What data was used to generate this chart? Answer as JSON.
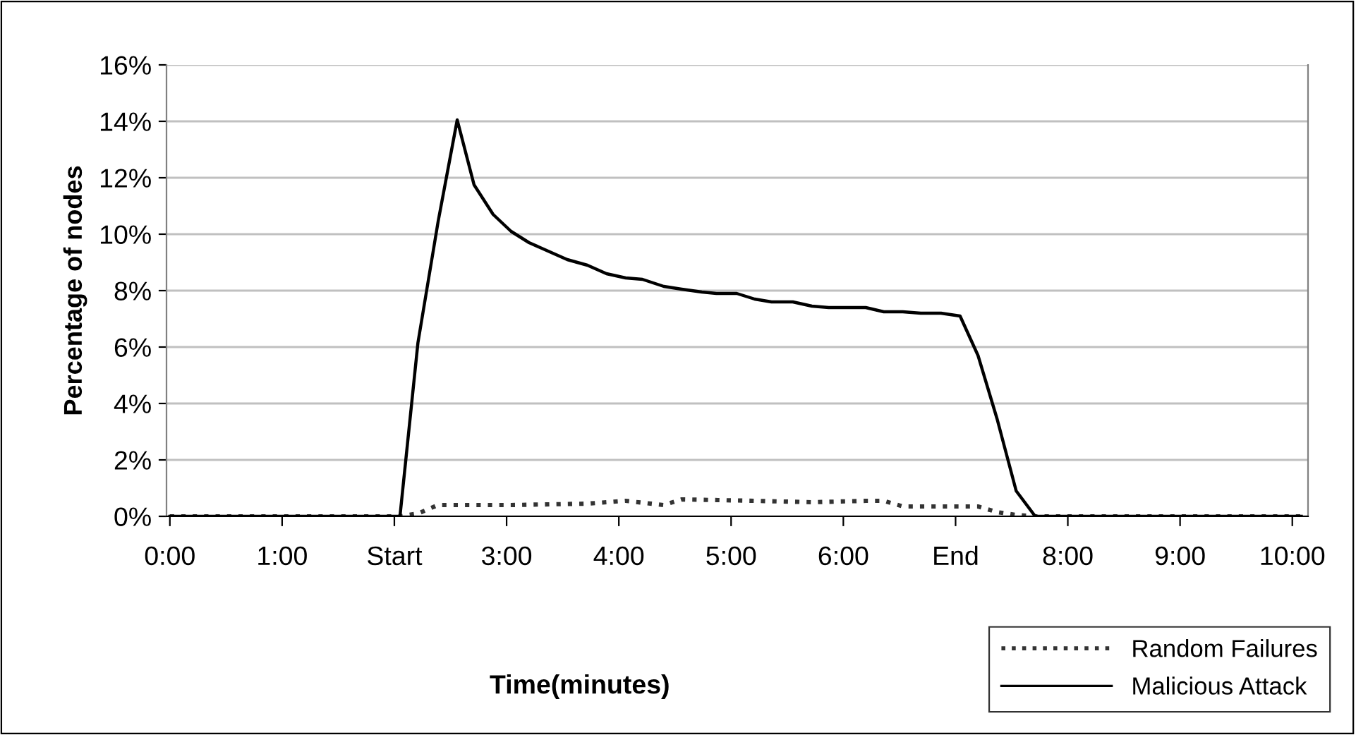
{
  "chart_data": {
    "type": "line",
    "xlabel": "Time(minutes)",
    "ylabel": "Percentage of nodes",
    "xlim": [
      -0.03,
      10.14
    ],
    "xticks": [
      {
        "value": 0,
        "label": "0:00"
      },
      {
        "value": 1,
        "label": "1:00"
      },
      {
        "value": 2,
        "label": "Start"
      },
      {
        "value": 3,
        "label": "3:00"
      },
      {
        "value": 4,
        "label": "4:00"
      },
      {
        "value": 5,
        "label": "5:00"
      },
      {
        "value": 6,
        "label": "6:00"
      },
      {
        "value": 7,
        "label": "End"
      },
      {
        "value": 8,
        "label": "8:00"
      },
      {
        "value": 9,
        "label": "9:00"
      },
      {
        "value": 10,
        "label": "10:00"
      }
    ],
    "ylim": [
      0,
      16
    ],
    "yticks": [
      {
        "value": 0,
        "label": "0%"
      },
      {
        "value": 2,
        "label": "2%"
      },
      {
        "value": 4,
        "label": "4%"
      },
      {
        "value": 6,
        "label": "6%"
      },
      {
        "value": 8,
        "label": "8%"
      },
      {
        "value": 10,
        "label": "10%"
      },
      {
        "value": 12,
        "label": "12%"
      },
      {
        "value": 14,
        "label": "14%"
      },
      {
        "value": 16,
        "label": "16%"
      }
    ],
    "grid": "y",
    "legend": "bottom right",
    "marker": "none",
    "series": [
      {
        "name": "Random Failures",
        "color": "#333333",
        "line_style": "dotted",
        "x": [
          0,
          2.05,
          2.21,
          2.39,
          3.04,
          3.72,
          4.06,
          4.4,
          4.56,
          5.21,
          5.72,
          6.2,
          6.36,
          6.53,
          7.04,
          7.2,
          7.37,
          7.54,
          7.71,
          10.08
        ],
        "values": [
          0,
          0,
          0.1,
          0.4,
          0.4,
          0.45,
          0.55,
          0.4,
          0.6,
          0.55,
          0.5,
          0.55,
          0.55,
          0.35,
          0.35,
          0.35,
          0.15,
          0.05,
          0,
          0
        ]
      },
      {
        "name": "Malicious Attack",
        "color": "#000000",
        "line_style": "solid",
        "x": [
          0,
          2.05,
          2.21,
          2.39,
          2.56,
          2.71,
          2.88,
          3.04,
          3.2,
          3.37,
          3.54,
          3.72,
          3.89,
          4.06,
          4.21,
          4.4,
          4.56,
          4.74,
          4.87,
          5.05,
          5.21,
          5.36,
          5.55,
          5.72,
          5.87,
          6.2,
          6.36,
          6.53,
          6.69,
          6.87,
          7.04,
          7.2,
          7.37,
          7.54,
          7.71,
          10.08
        ],
        "values": [
          0,
          0,
          6.15,
          10.45,
          14.05,
          11.75,
          10.7,
          10.1,
          9.7,
          9.4,
          9.1,
          8.9,
          8.6,
          8.45,
          8.4,
          8.15,
          8.05,
          7.95,
          7.9,
          7.9,
          7.7,
          7.6,
          7.6,
          7.45,
          7.4,
          7.4,
          7.25,
          7.25,
          7.2,
          7.2,
          7.1,
          5.7,
          3.45,
          0.9,
          0,
          0
        ]
      }
    ]
  }
}
